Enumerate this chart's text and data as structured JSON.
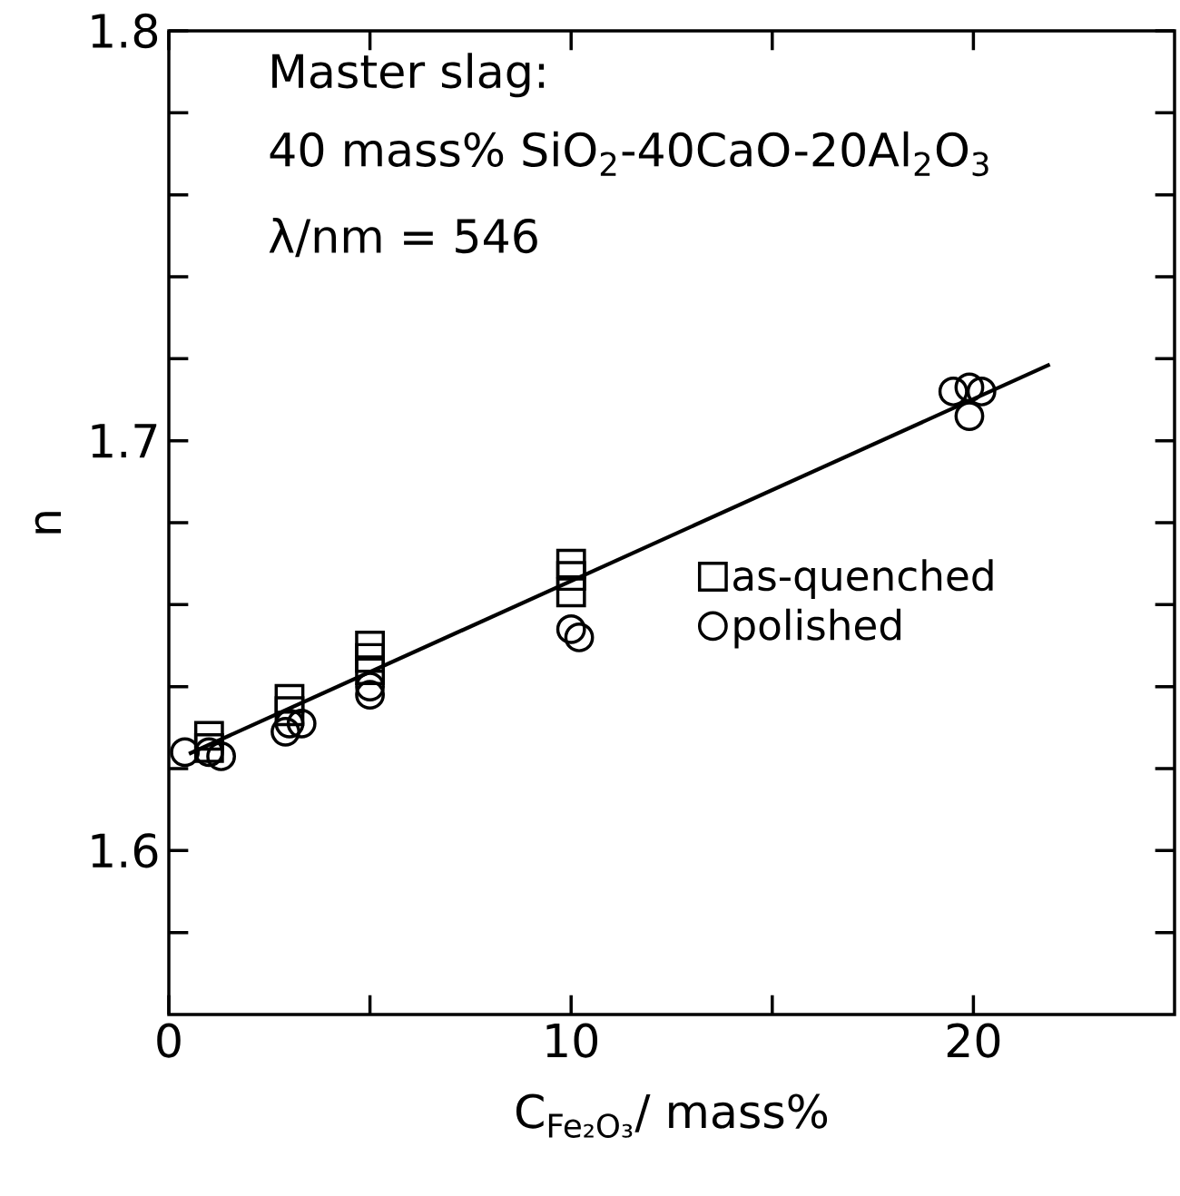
{
  "chart_data": {
    "type": "scatter",
    "xlabel": "C$_{Fe₂O₃}$/ mass%",
    "ylabel": "n",
    "annotations": [
      "Master slag:",
      "40 mass% SiO$_{2}$-40CaO-20Al$_{2}$O$_{3}$",
      "λ/nm = 546"
    ],
    "xlim": [
      0,
      25
    ],
    "xticks": [
      0,
      {
        "value": 5,
        "label": null
      },
      10,
      {
        "value": 15,
        "label": null
      },
      20
    ],
    "ylim": [
      1.56,
      1.8
    ],
    "yticks": [
      {
        "value": 1.58,
        "label": null
      },
      1.6,
      {
        "value": 1.62,
        "label": null
      },
      {
        "value": 1.64,
        "label": null
      },
      {
        "value": 1.66,
        "label": null
      },
      {
        "value": 1.68,
        "label": null
      },
      1.7,
      {
        "value": 1.72,
        "label": null
      },
      {
        "value": 1.74,
        "label": null
      },
      {
        "value": 1.76,
        "label": null
      },
      {
        "value": 1.78,
        "label": null
      },
      1.8
    ],
    "legend": "right",
    "grid": false,
    "series": [
      {
        "name": "as-quenched",
        "color": "#000000",
        "marker": "square",
        "x": [
          1,
          1,
          3,
          3,
          5,
          5,
          5,
          10,
          10,
          10
        ],
        "values": [
          1.628,
          1.625,
          1.637,
          1.634,
          1.65,
          1.647,
          1.644,
          1.67,
          1.667,
          1.663
        ]
      },
      {
        "name": "polished",
        "color": "#000000",
        "marker": "circle",
        "x": [
          0.4,
          1,
          1.3,
          2.9,
          3,
          3.3,
          5,
          5,
          10,
          10.2,
          19.5,
          19.9,
          20.2,
          19.9
        ],
        "values": [
          1.624,
          1.624,
          1.623,
          1.629,
          1.631,
          1.631,
          1.64,
          1.638,
          1.654,
          1.652,
          1.712,
          1.713,
          1.712,
          1.706
        ]
      },
      {
        "type": "line",
        "color": "#000000",
        "marker": "none",
        "line_style": "solid",
        "x": [
          0.5,
          21.9
        ],
        "values": [
          1.6236,
          1.7186
        ]
      }
    ]
  }
}
